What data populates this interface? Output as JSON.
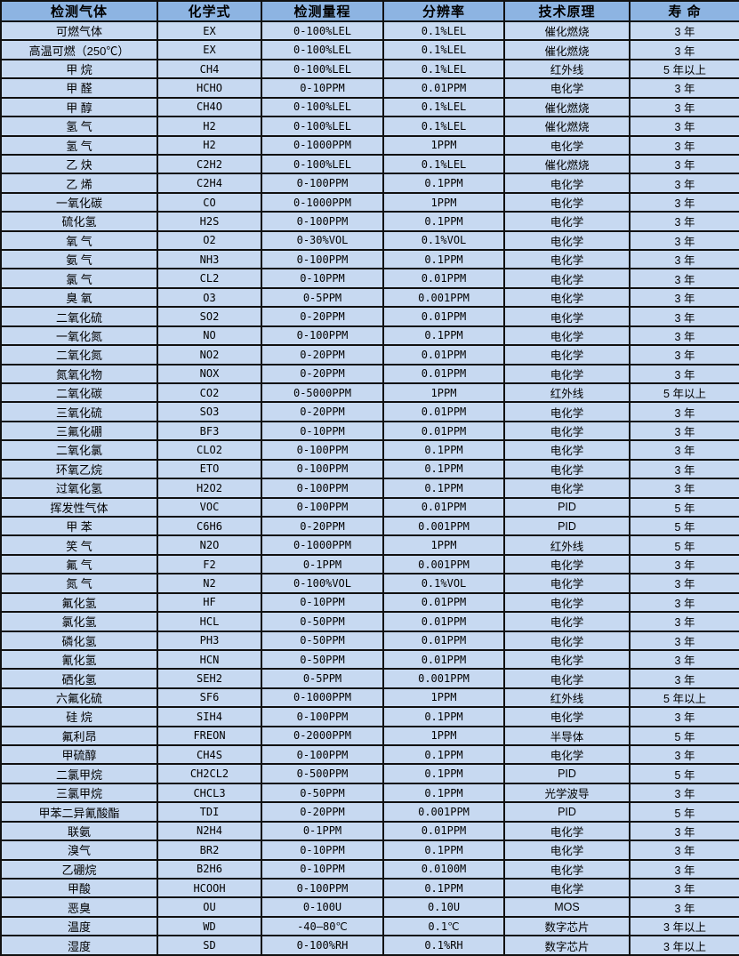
{
  "colors": {
    "header_bg": "#8db4e2",
    "row_bg": "#c7d9f1",
    "border": "#111111",
    "text": "#000000"
  },
  "table": {
    "headers": [
      "检测气体",
      "化学式",
      "检测量程",
      "分辨率",
      "技术原理",
      "寿 命"
    ],
    "rows": [
      [
        "可燃气体",
        "EX",
        "0-100%LEL",
        "0.1%LEL",
        "催化燃烧",
        "3 年"
      ],
      [
        "高温可燃（250℃）",
        "EX",
        "0-100%LEL",
        "0.1%LEL",
        "催化燃烧",
        "3 年"
      ],
      [
        "甲 烷",
        "CH4",
        "0-100%LEL",
        "0.1%LEL",
        "红外线",
        "5 年以上"
      ],
      [
        "甲 醛",
        "HCHO",
        "0-10PPM",
        "0.01PPM",
        "电化学",
        "3 年"
      ],
      [
        "甲 醇",
        "CH4O",
        "0-100%LEL",
        "0.1%LEL",
        "催化燃烧",
        "3 年"
      ],
      [
        "氢 气",
        "H2",
        "0-100%LEL",
        "0.1%LEL",
        "催化燃烧",
        "3 年"
      ],
      [
        "氢 气",
        "H2",
        "0-1000PPM",
        "1PPM",
        "电化学",
        "3 年"
      ],
      [
        "乙 炔",
        "C2H2",
        "0-100%LEL",
        "0.1%LEL",
        "催化燃烧",
        "3 年"
      ],
      [
        "乙 烯",
        "C2H4",
        "0-100PPM",
        "0.1PPM",
        "电化学",
        "3 年"
      ],
      [
        "一氧化碳",
        "CO",
        "0-1000PPM",
        "1PPM",
        "电化学",
        "3 年"
      ],
      [
        "硫化氢",
        "H2S",
        "0-100PPM",
        "0.1PPM",
        "电化学",
        "3 年"
      ],
      [
        "氧 气",
        "O2",
        "0-30%VOL",
        "0.1%VOL",
        "电化学",
        "3 年"
      ],
      [
        "氨 气",
        "NH3",
        "0-100PPM",
        "0.1PPM",
        "电化学",
        "3 年"
      ],
      [
        "氯 气",
        "CL2",
        "0-10PPM",
        "0.01PPM",
        "电化学",
        "3 年"
      ],
      [
        "臭 氧",
        "O3",
        "0-5PPM",
        "0.001PPM",
        "电化学",
        "3 年"
      ],
      [
        "二氧化硫",
        "SO2",
        "0-20PPM",
        "0.01PPM",
        "电化学",
        "3 年"
      ],
      [
        "一氧化氮",
        "NO",
        "0-100PPM",
        "0.1PPM",
        "电化学",
        "3 年"
      ],
      [
        "二氧化氮",
        "NO2",
        "0-20PPM",
        "0.01PPM",
        "电化学",
        "3 年"
      ],
      [
        "氮氧化物",
        "NOX",
        "0-20PPM",
        "0.01PPM",
        "电化学",
        "3 年"
      ],
      [
        "二氧化碳",
        "CO2",
        "0-5000PPM",
        "1PPM",
        "红外线",
        "5 年以上"
      ],
      [
        "三氧化硫",
        "SO3",
        "0-20PPM",
        "0.01PPM",
        "电化学",
        "3 年"
      ],
      [
        "三氟化硼",
        "BF3",
        "0-10PPM",
        "0.01PPM",
        "电化学",
        "3 年"
      ],
      [
        "二氧化氯",
        "CLO2",
        "0-100PPM",
        "0.1PPM",
        "电化学",
        "3 年"
      ],
      [
        "环氧乙烷",
        "ETO",
        "0-100PPM",
        "0.1PPM",
        "电化学",
        "3 年"
      ],
      [
        "过氧化氢",
        "H2O2",
        "0-100PPM",
        "0.1PPM",
        "电化学",
        "3 年"
      ],
      [
        "挥发性气体",
        "VOC",
        "0-100PPM",
        "0.01PPM",
        "PID",
        "5 年"
      ],
      [
        "甲 苯",
        "C6H6",
        "0-20PPM",
        "0.001PPM",
        "PID",
        "5 年"
      ],
      [
        "笑 气",
        "N2O",
        "0-1000PPM",
        "1PPM",
        "红外线",
        "5 年"
      ],
      [
        "氟 气",
        "F2",
        "0-1PPM",
        "0.001PPM",
        "电化学",
        "3 年"
      ],
      [
        "氮 气",
        "N2",
        "0-100%VOL",
        "0.1%VOL",
        "电化学",
        "3 年"
      ],
      [
        "氟化氢",
        "HF",
        "0-10PPM",
        "0.01PPM",
        "电化学",
        "3 年"
      ],
      [
        "氯化氢",
        "HCL",
        "0-50PPM",
        "0.01PPM",
        "电化学",
        "3 年"
      ],
      [
        "磷化氢",
        "PH3",
        "0-50PPM",
        "0.01PPM",
        "电化学",
        "3 年"
      ],
      [
        "氰化氢",
        "HCN",
        "0-50PPM",
        "0.01PPM",
        "电化学",
        "3 年"
      ],
      [
        "硒化氢",
        "SEH2",
        "0-5PPM",
        "0.001PPM",
        "电化学",
        "3 年"
      ],
      [
        "六氟化硫",
        "SF6",
        "0-1000PPM",
        "1PPM",
        "红外线",
        "5 年以上"
      ],
      [
        "硅 烷",
        "SIH4",
        "0-100PPM",
        "0.1PPM",
        "电化学",
        "3 年"
      ],
      [
        "氟利昂",
        "FREON",
        "0-2000PPM",
        "1PPM",
        "半导体",
        "5 年"
      ],
      [
        "甲硫醇",
        "CH4S",
        "0-100PPM",
        "0.1PPM",
        "电化学",
        "3 年"
      ],
      [
        "二氯甲烷",
        "CH2CL2",
        "0-500PPM",
        "0.1PPM",
        "PID",
        "5 年"
      ],
      [
        "三氯甲烷",
        "CHCL3",
        "0-50PPM",
        "0.1PPM",
        "光学波导",
        "3 年"
      ],
      [
        "甲苯二异氰酸酯",
        "TDI",
        "0-20PPM",
        "0.001PPM",
        "PID",
        "5 年"
      ],
      [
        "联氨",
        "N2H4",
        "0-1PPM",
        "0.01PPM",
        "电化学",
        "3 年"
      ],
      [
        "溴气",
        "BR2",
        "0-10PPM",
        "0.1PPM",
        "电化学",
        "3 年"
      ],
      [
        "乙硼烷",
        "B2H6",
        "0-10PPM",
        "0.0100M",
        "电化学",
        "3 年"
      ],
      [
        "甲酸",
        "HCOOH",
        "0-100PPM",
        "0.1PPM",
        "电化学",
        "3 年"
      ],
      [
        "恶臭",
        "OU",
        "0-100U",
        "0.10U",
        "MOS",
        "3 年"
      ],
      [
        "温度",
        "WD",
        "-40—80℃",
        "0.1℃",
        "数字芯片",
        "3 年以上"
      ],
      [
        "湿度",
        "SD",
        "0-100%RH",
        "0.1%RH",
        "数字芯片",
        "3 年以上"
      ]
    ]
  }
}
